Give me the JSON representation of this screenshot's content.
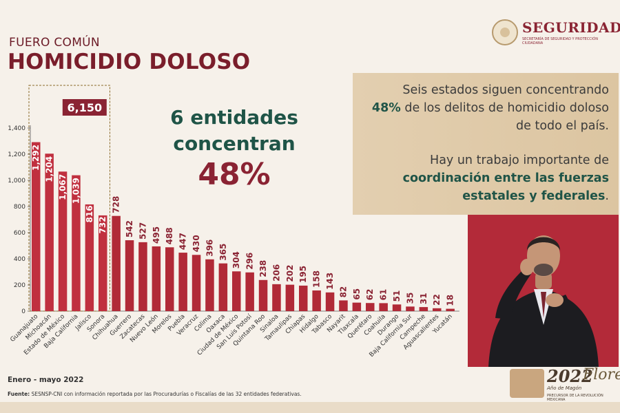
{
  "header": {
    "kicker": "FUERO COMÚN",
    "title": "HOMICIDIO DOLOSO"
  },
  "logo": {
    "name": "SEGURIDAD",
    "subtitle": "SECRETARÍA DE SEGURIDAD Y PROTECCIÓN CIUDADANA"
  },
  "highlight": {
    "line1": "6 entidades",
    "line2": "concentran",
    "percent": "48%"
  },
  "notes": {
    "p1_before": "Seis estados siguen concentrando",
    "p1_highlight": "48%",
    "p1_after": "de los delitos de homicidio doloso de todo el país.",
    "p2_before": "Hay un trabajo importante de",
    "p2_highlight": "coordinación entre las fuerzas estatales y federales",
    "p2_after": "."
  },
  "ribbon": {
    "year": "2022",
    "name": "Flores",
    "caption": "Año de Magón",
    "sub": "PRECURSOR DE LA REVOLUCIÓN MEXICANA"
  },
  "footer": {
    "period": "Enero - mayo 2022",
    "source_label": "Fuente:",
    "source_text": "SESNSP-CNI con información reportada por las Procuradurías o Fiscalías de las 32 entidades federativas."
  },
  "colors": {
    "bar": "#b12a37",
    "bar_highlight": "#c0303f",
    "value_label": "#8a2333",
    "highlight_box": "#8a2333",
    "green": "#1f5447"
  },
  "chart_data": {
    "type": "bar",
    "categories": [
      "Guanajuato",
      "Michoacán",
      "Estado de México",
      "Baja California",
      "Jalisco",
      "Sonora",
      "Chihuahua",
      "Guerrero",
      "Zacatecas",
      "Nuevo León",
      "Morelos",
      "Puebla",
      "Veracruz",
      "Colima",
      "Oaxaca",
      "Ciudad de México",
      "San Luis Potosí",
      "Quintana Roo",
      "Sinaloa",
      "Tamaulipas",
      "Chiapas",
      "Hidalgo",
      "Tabasco",
      "Nayarit",
      "Tlaxcala",
      "Querétaro",
      "Coahuila",
      "Durango",
      "Baja California Sur",
      "Campeche",
      "Aguascalientes",
      "Yucatán"
    ],
    "values": [
      1292,
      1204,
      1067,
      1039,
      816,
      732,
      728,
      542,
      527,
      495,
      488,
      447,
      430,
      396,
      365,
      304,
      296,
      238,
      206,
      202,
      195,
      158,
      143,
      82,
      65,
      62,
      61,
      51,
      35,
      31,
      22,
      18
    ],
    "value_labels": [
      "1,292",
      "1,204",
      "1,067",
      "1,039",
      "816",
      "732",
      "728",
      "542",
      "527",
      "495",
      "488",
      "447",
      "430",
      "396",
      "365",
      "304",
      "296",
      "238",
      "206",
      "202",
      "195",
      "158",
      "143",
      "82",
      "65",
      "62",
      "61",
      "51",
      "35",
      "31",
      "22",
      "18"
    ],
    "yticks": [
      0,
      200,
      400,
      600,
      800,
      1000,
      1200,
      1400
    ],
    "ytick_labels": [
      "0",
      "200",
      "400",
      "600",
      "800",
      "1,000",
      "1,200",
      "1,400"
    ],
    "ylim": [
      0,
      1400
    ],
    "highlight_count": 6,
    "highlight_total": "6,150",
    "grid": false,
    "legend": false
  }
}
